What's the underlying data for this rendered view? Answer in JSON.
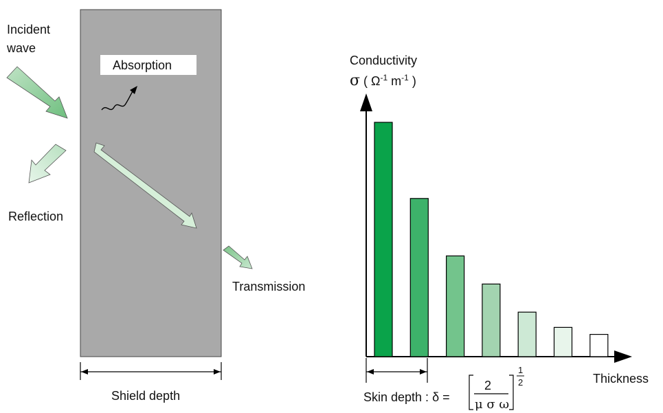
{
  "left_panel": {
    "incident_line1": "Incident",
    "incident_line2": "wave",
    "absorption": "Absorption",
    "reflection": "Reflection",
    "transmission": "Transmission",
    "shield_depth": "Shield depth"
  },
  "right_panel": {
    "y_label_line1": "Conductivity",
    "y_label_sigma": "σ",
    "y_label_unit_open": " ( Ω",
    "y_label_exp1": "-1",
    "y_label_m": " m",
    "y_label_exp2": "-1",
    "y_label_close": " )",
    "x_label": "Thickness",
    "skin_depth_label": "Skin depth : δ =",
    "formula_numerator": "2",
    "formula_denominator": "μ σ ω",
    "formula_exp_num": "1",
    "formula_exp_den": "2"
  },
  "chart_data": {
    "type": "bar",
    "categories": [
      "",
      "",
      "",
      "",
      "",
      "",
      ""
    ],
    "values": [
      1.0,
      0.675,
      0.43,
      0.31,
      0.19,
      0.125,
      0.095
    ],
    "colors": [
      "#0aa34a",
      "#3db26a",
      "#73c48c",
      "#a3d4b0",
      "#cde9d5",
      "#e8f5eb",
      "#ffffff"
    ],
    "xlabel": "Thickness",
    "ylabel": "Conductivity",
    "grid": false
  },
  "colors": {
    "shield": "#a9a9a9",
    "arrow_incident": "#9fd4a8",
    "arrow_light": "#d6efd9"
  }
}
